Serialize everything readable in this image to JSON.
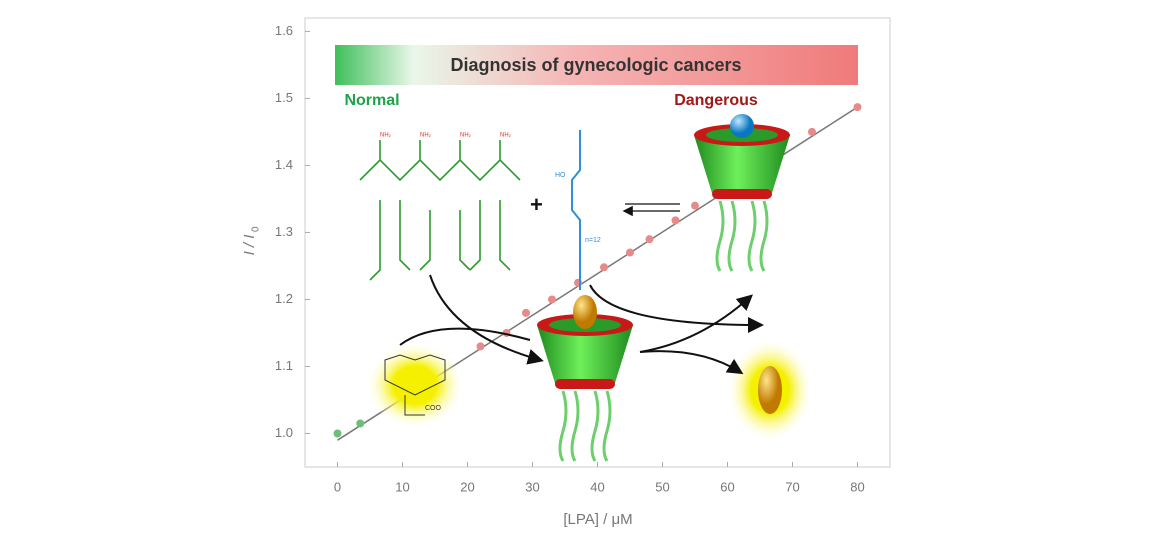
{
  "chart_data": {
    "type": "scatter",
    "banner": "Diagnosis of gynecologic cancers",
    "left_label": "Normal",
    "right_label": "Dangerous",
    "x_label": "[LPA] / μM",
    "y_label": "I / I",
    "y_label_sub": "0",
    "molecule_labels": [
      "HO",
      "n=12",
      "COO"
    ],
    "xlim": [
      -5,
      85
    ],
    "ylim": [
      0.95,
      1.62
    ],
    "xticks": [
      0,
      10,
      20,
      30,
      40,
      50,
      60,
      70,
      80
    ],
    "yticks": [
      {
        "value": 1.0,
        "label": "1.0"
      },
      {
        "value": 1.1,
        "label": "1.1"
      },
      {
        "value": 1.2,
        "label": "1.2"
      },
      {
        "value": 1.3,
        "label": "1.3"
      },
      {
        "value": 1.4,
        "label": "1.4"
      },
      {
        "value": 1.5,
        "label": "1.5"
      },
      {
        "value": 1.6,
        "label": "1.6"
      }
    ],
    "series": [
      {
        "color": "#6cbf7a",
        "x": [
          0,
          3.5
        ],
        "values": [
          1.0,
          1.015
        ]
      },
      {
        "color": "#e88a8a",
        "x": [
          22,
          26,
          29,
          33,
          37,
          41,
          45,
          48,
          52,
          55,
          73,
          80
        ],
        "values": [
          1.13,
          1.15,
          1.18,
          1.2,
          1.225,
          1.248,
          1.27,
          1.29,
          1.318,
          1.34,
          1.45,
          1.487
        ]
      }
    ],
    "fit_line": {
      "x": [
        0,
        80
      ],
      "values": [
        0.99,
        1.487
      ],
      "color": "#777777"
    }
  }
}
